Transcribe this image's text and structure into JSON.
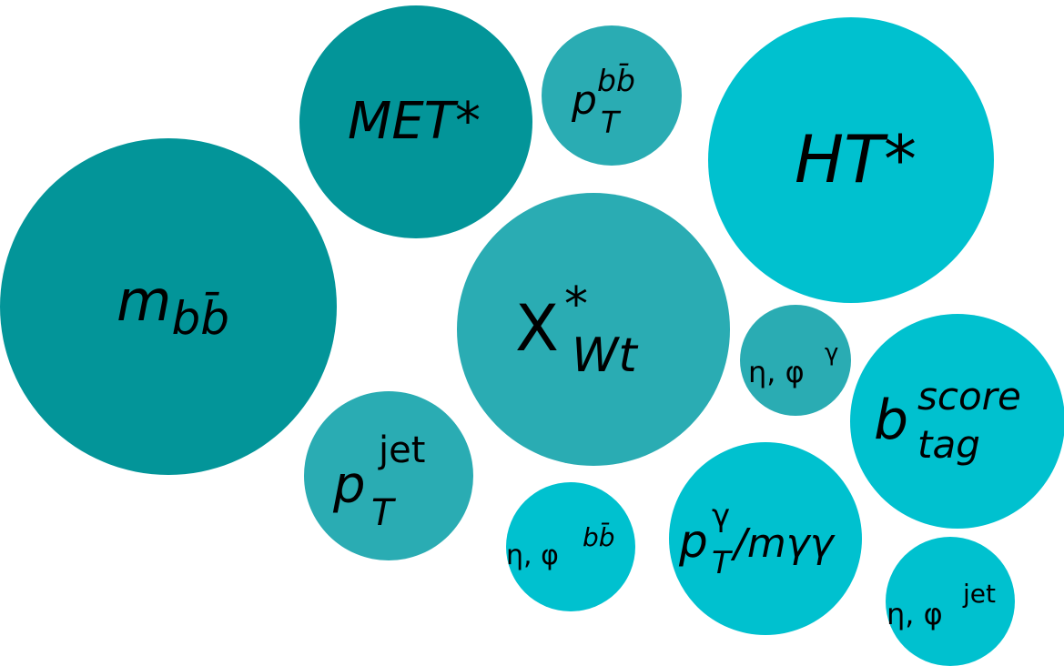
{
  "bubbles": {
    "mbb": {
      "base": "m",
      "sub": "bb̄",
      "sup": "",
      "color": "#039599"
    },
    "met": {
      "base": "MET*",
      "sub": "",
      "sup": "",
      "color": "#039599"
    },
    "ptbb": {
      "base": "p",
      "sub": "T",
      "sup": "bb̄",
      "color": "#2aacb3"
    },
    "ht": {
      "base": "HT*",
      "sub": "",
      "sup": "",
      "color": "#00c1cf"
    },
    "xwt": {
      "base": "X",
      "sub": "Wt",
      "sup": "*",
      "color": "#2aacb3"
    },
    "etaphig": {
      "base": "η, φ",
      "sub": "",
      "sup": "γ",
      "color": "#2aacb3"
    },
    "btag": {
      "base": "b",
      "sub": "tag",
      "sup": "score",
      "color": "#00c1cf"
    },
    "ptjet": {
      "base": "p",
      "sub": "T",
      "sup": "jet",
      "color": "#2aacb3"
    },
    "etaphibb": {
      "base": "η, φ",
      "sub": "",
      "sup": "bb̄",
      "color": "#00c1cf"
    },
    "ptgm": {
      "base": "p",
      "sub": "T",
      "sup": "γ",
      "tail": "/mγγ",
      "color": "#00c1cf"
    },
    "etaphijet": {
      "base": "η, φ",
      "sub": "",
      "sup": "jet",
      "color": "#00c1cf"
    }
  }
}
